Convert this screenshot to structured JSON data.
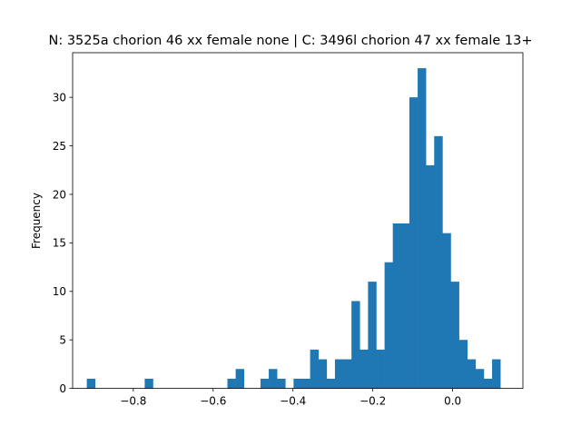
{
  "chart_data": {
    "type": "bar",
    "title": "N: 3525a chorion 46 xx female none | C: 3496l chorion 47 xx female 13+",
    "xlabel": "",
    "ylabel": "Frequency",
    "xlim": [
      -0.952,
      0.176
    ],
    "ylim": [
      0,
      34.6
    ],
    "xticks": [
      -0.8,
      -0.6,
      -0.4,
      -0.2,
      0.0
    ],
    "xtick_labels": [
      "−0.8",
      "−0.6",
      "−0.4",
      "−0.2",
      "0.0"
    ],
    "yticks": [
      0,
      5,
      10,
      15,
      20,
      25,
      30
    ],
    "ytick_labels": [
      "0",
      "5",
      "10",
      "15",
      "20",
      "25",
      "30"
    ],
    "bin_start": -0.9165,
    "bin_width": 0.02072,
    "values": [
      1,
      0,
      0,
      0,
      0,
      0,
      0,
      1,
      0,
      0,
      0,
      0,
      0,
      0,
      0,
      0,
      0,
      1,
      2,
      0,
      0,
      1,
      2,
      1,
      0,
      1,
      1,
      4,
      3,
      1,
      3,
      3,
      9,
      4,
      11,
      4,
      13,
      17,
      17,
      30,
      33,
      23,
      26,
      16,
      11,
      5,
      3,
      2,
      1,
      3
    ],
    "color": "#1f77b4",
    "grid": false
  }
}
